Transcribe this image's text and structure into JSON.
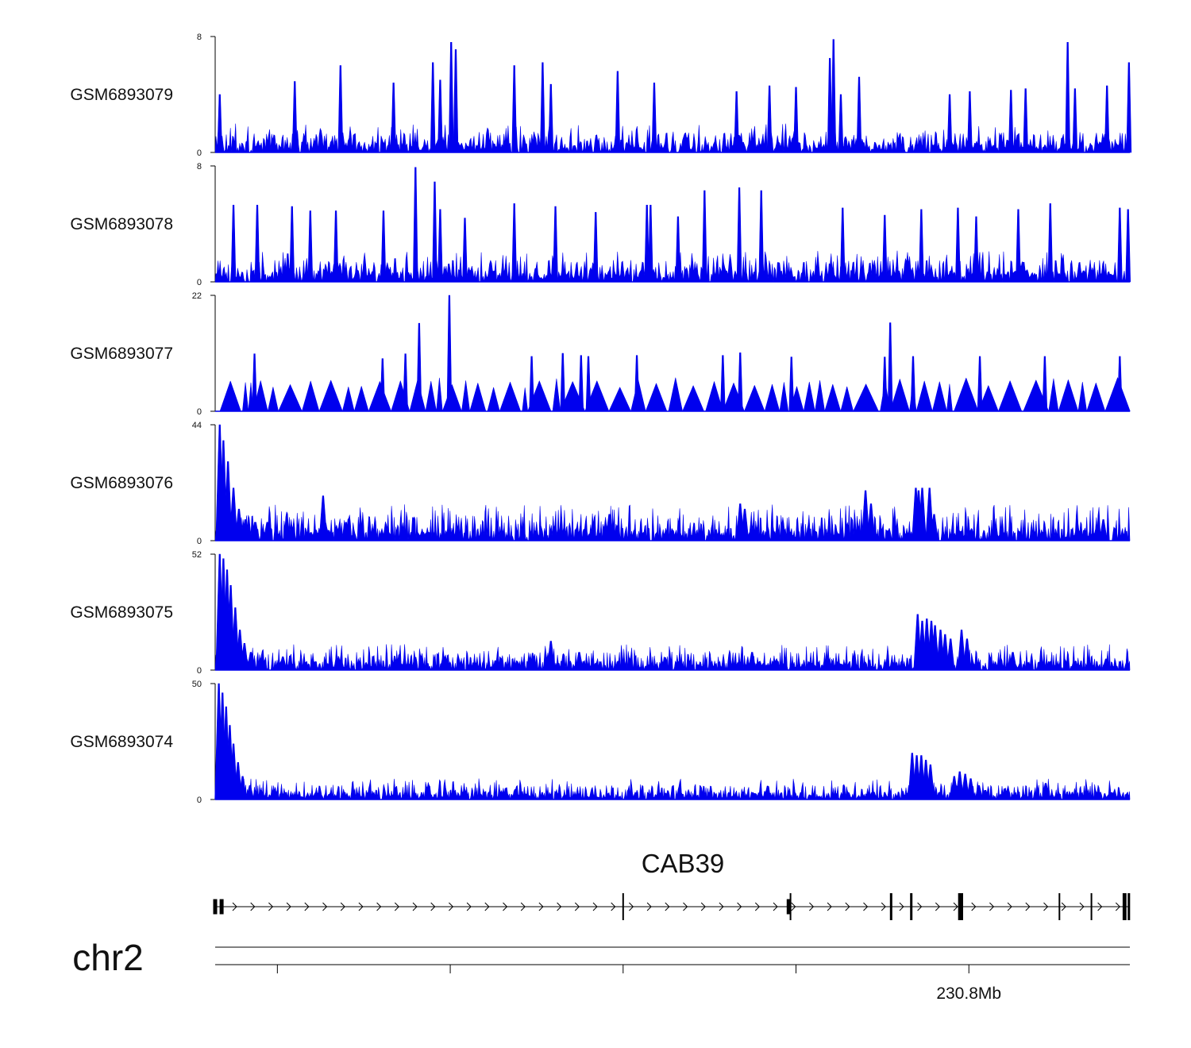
{
  "chart_data": {
    "type": "area",
    "title": "",
    "series_color": "#0000ee",
    "x_range": [
      230645000,
      230898000
    ],
    "chromosome": "chr2",
    "gene": "CAB39",
    "coordinate_label": "230.8Mb",
    "tracks": [
      {
        "name": "GSM6893079",
        "ymax": 8,
        "ymin": 0,
        "profile": "sparse",
        "seed": 79,
        "base": 0.55,
        "peaks": [
          [
            0.5,
            4.0
          ],
          [
            8.7,
            4.9
          ],
          [
            13.7,
            6.0
          ],
          [
            19.5,
            4.8
          ],
          [
            23.8,
            6.2
          ],
          [
            24.6,
            5.0
          ],
          [
            25.8,
            7.6
          ],
          [
            26.3,
            7.1
          ],
          [
            32.7,
            6.0
          ],
          [
            35.8,
            6.2
          ],
          [
            36.7,
            4.7
          ],
          [
            44.0,
            5.6
          ],
          [
            48.0,
            4.8
          ],
          [
            57.0,
            4.2
          ],
          [
            60.6,
            4.6
          ],
          [
            63.5,
            4.5
          ],
          [
            67.2,
            6.5
          ],
          [
            67.6,
            7.8
          ],
          [
            68.4,
            4.0
          ],
          [
            70.4,
            5.2
          ],
          [
            80.3,
            4.0
          ],
          [
            82.5,
            4.2
          ],
          [
            87.0,
            4.3
          ],
          [
            88.6,
            4.4
          ],
          [
            93.2,
            7.6
          ],
          [
            94.0,
            4.4
          ],
          [
            97.5,
            4.6
          ],
          [
            99.9,
            6.2
          ]
        ]
      },
      {
        "name": "GSM6893078",
        "ymax": 8,
        "ymin": 0,
        "profile": "sparse",
        "seed": 78,
        "base": 0.6,
        "peaks": [
          [
            2.0,
            5.3
          ],
          [
            4.6,
            5.3
          ],
          [
            8.4,
            5.2
          ],
          [
            10.4,
            4.9
          ],
          [
            13.2,
            4.9
          ],
          [
            18.4,
            4.9
          ],
          [
            21.9,
            7.9
          ],
          [
            24.0,
            6.9
          ],
          [
            24.6,
            5.0
          ],
          [
            27.3,
            4.4
          ],
          [
            32.7,
            5.4
          ],
          [
            37.2,
            5.2
          ],
          [
            41.6,
            4.8
          ],
          [
            47.2,
            5.3
          ],
          [
            47.6,
            5.3
          ],
          [
            50.6,
            4.5
          ],
          [
            53.5,
            6.3
          ],
          [
            57.3,
            6.5
          ],
          [
            59.7,
            6.3
          ],
          [
            68.6,
            5.1
          ],
          [
            73.2,
            4.6
          ],
          [
            77.2,
            5.0
          ],
          [
            81.2,
            5.1
          ],
          [
            83.2,
            4.5
          ],
          [
            87.8,
            5.0
          ],
          [
            91.3,
            5.4
          ],
          [
            98.9,
            5.1
          ],
          [
            99.8,
            5.0
          ]
        ]
      },
      {
        "name": "GSM6893077",
        "ymax": 22,
        "ymin": 0,
        "profile": "triangles",
        "seed": 77,
        "base": 5.0,
        "peaks": [
          [
            4.3,
            10.9
          ],
          [
            18.3,
            10.0
          ],
          [
            20.8,
            10.9
          ],
          [
            22.3,
            16.7
          ],
          [
            25.6,
            22.0
          ],
          [
            34.6,
            10.4
          ],
          [
            38.0,
            11.0
          ],
          [
            40.0,
            10.6
          ],
          [
            40.8,
            10.4
          ],
          [
            46.1,
            10.6
          ],
          [
            55.5,
            10.6
          ],
          [
            57.4,
            11.1
          ],
          [
            63.0,
            10.3
          ],
          [
            73.2,
            10.3
          ],
          [
            73.8,
            16.8
          ],
          [
            76.3,
            10.4
          ],
          [
            83.6,
            10.4
          ],
          [
            90.7,
            10.4
          ],
          [
            98.9,
            10.4
          ]
        ]
      },
      {
        "name": "GSM6893076",
        "ymax": 44,
        "ymin": 0,
        "profile": "decay",
        "seed": 76,
        "base": 3.8,
        "peaks": [
          [
            0.5,
            44.0
          ],
          [
            0.9,
            38.0
          ],
          [
            1.4,
            30.0
          ],
          [
            2.0,
            20.0
          ],
          [
            2.6,
            12.0
          ],
          [
            3.3,
            8.0
          ],
          [
            4.4,
            7.0
          ],
          [
            5.7,
            7.0
          ],
          [
            11.8,
            17.0
          ],
          [
            14.3,
            7.0
          ],
          [
            43.1,
            10.0
          ],
          [
            57.4,
            14.0
          ],
          [
            57.9,
            12.0
          ],
          [
            71.1,
            19.0
          ],
          [
            71.7,
            14.0
          ],
          [
            76.6,
            20.0
          ],
          [
            76.9,
            19.0
          ],
          [
            77.3,
            20.0
          ],
          [
            78.1,
            20.0
          ],
          [
            78.6,
            10.0
          ],
          [
            97.1,
            8.0
          ]
        ]
      },
      {
        "name": "GSM6893075",
        "ymax": 52,
        "ymin": 0,
        "profile": "decay",
        "seed": 75,
        "base": 3.2,
        "peaks": [
          [
            0.5,
            52.0
          ],
          [
            0.9,
            50.0
          ],
          [
            1.3,
            45.0
          ],
          [
            1.7,
            38.0
          ],
          [
            2.2,
            28.0
          ],
          [
            2.7,
            18.0
          ],
          [
            3.2,
            12.0
          ],
          [
            3.9,
            8.0
          ],
          [
            5.1,
            6.0
          ],
          [
            7.4,
            6.0
          ],
          [
            36.7,
            13.0
          ],
          [
            39.8,
            8.0
          ],
          [
            58.7,
            8.0
          ],
          [
            76.8,
            25.0
          ],
          [
            77.3,
            22.0
          ],
          [
            77.8,
            23.0
          ],
          [
            78.3,
            22.0
          ],
          [
            78.7,
            20.0
          ],
          [
            79.3,
            18.0
          ],
          [
            79.8,
            16.0
          ],
          [
            80.4,
            14.0
          ],
          [
            81.6,
            18.0
          ],
          [
            82.2,
            14.0
          ],
          [
            87.2,
            8.0
          ],
          [
            97.4,
            5.0
          ]
        ]
      },
      {
        "name": "GSM6893074",
        "ymax": 50,
        "ymin": 0,
        "profile": "decay",
        "seed": 74,
        "base": 2.5,
        "peaks": [
          [
            0.4,
            50.0
          ],
          [
            0.8,
            46.0
          ],
          [
            1.2,
            40.0
          ],
          [
            1.6,
            32.0
          ],
          [
            2.0,
            24.0
          ],
          [
            2.5,
            16.0
          ],
          [
            3.0,
            10.0
          ],
          [
            3.8,
            6.0
          ],
          [
            5.0,
            4.0
          ],
          [
            76.2,
            20.0
          ],
          [
            76.7,
            19.0
          ],
          [
            77.2,
            19.0
          ],
          [
            77.7,
            17.0
          ],
          [
            78.2,
            15.0
          ],
          [
            80.8,
            10.0
          ],
          [
            81.4,
            12.0
          ],
          [
            82.0,
            11.0
          ],
          [
            82.6,
            9.0
          ],
          [
            83.5,
            6.0
          ],
          [
            84.2,
            4.0
          ],
          [
            90.8,
            7.0
          ],
          [
            98.0,
            3.0
          ]
        ]
      }
    ],
    "gene_model": {
      "strand": "+",
      "exons": [
        0.0,
        0.7,
        44.6,
        62.7,
        62.9,
        73.9,
        76.1,
        81.4,
        81.6,
        92.3,
        95.8,
        99.3,
        99.5,
        99.9
      ]
    },
    "axis": {
      "ticks": [
        6.8,
        25.7,
        44.6,
        63.5,
        82.4
      ],
      "labeled_tick": 82.4
    }
  }
}
